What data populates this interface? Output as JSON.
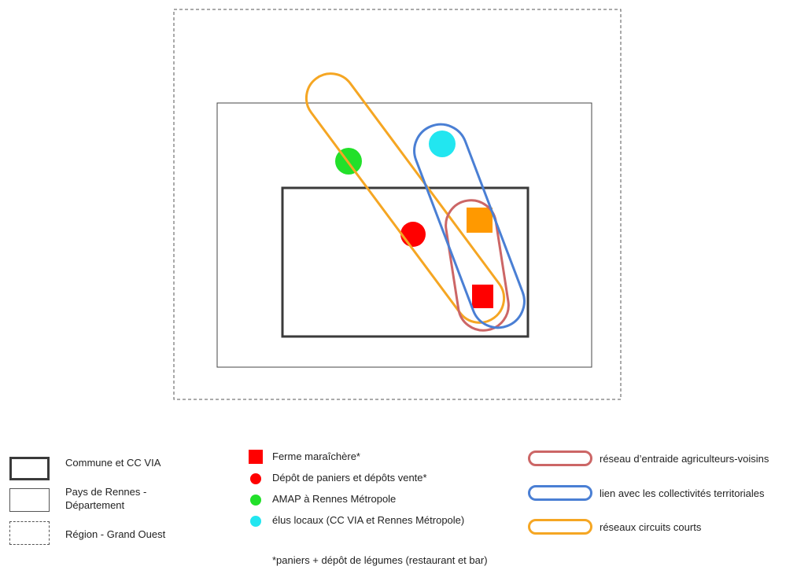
{
  "colors": {
    "ferme": "#ff0000",
    "depot": "#ff0000",
    "amap": "#22e02a",
    "elus": "#22e6f0",
    "orange_square": "#ff9900",
    "reseau_entraide": "#cc6666",
    "lien_collectivites": "#4a7fd4",
    "circuits_courts": "#f5a623",
    "commune_border": "#3a3a3a"
  },
  "legend": {
    "commune": "Commune et CC VIA",
    "pays": "Pays de Rennes -\nDépartement",
    "region": "Région -  Grand Ouest",
    "ferme": "Ferme maraîchère*",
    "depot": "Dépôt de paniers et dépôts vente*",
    "amap": "AMAP à Rennes Métropole",
    "elus": "élus locaux (CC VIA et Rennes Métropole)",
    "entraide": "réseau d’entraide agriculteurs-voisins",
    "lien": "lien avec les collectivités territoriales",
    "circuits": "réseaux circuits courts"
  },
  "footnote": "*paniers + dépôt de légumes (restaurant et bar)"
}
